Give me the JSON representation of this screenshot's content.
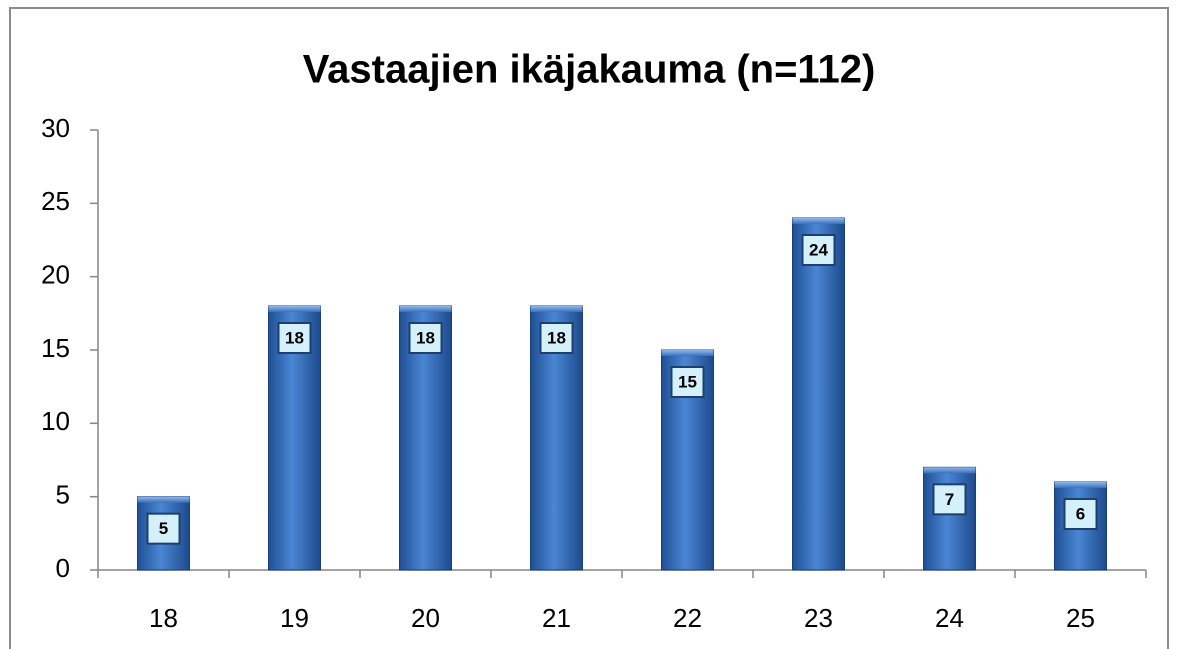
{
  "chart_data": {
    "type": "bar",
    "title": "Vastaajien ikäjakauma (n=112)",
    "categories": [
      "18",
      "19",
      "20",
      "21",
      "22",
      "23",
      "24",
      "25"
    ],
    "values": [
      5,
      18,
      18,
      18,
      15,
      24,
      7,
      6
    ],
    "color": "#3f78c8",
    "ylim": [
      0,
      30
    ],
    "yticks": [
      0,
      5,
      10,
      15,
      20,
      25,
      30
    ],
    "grid": false
  }
}
